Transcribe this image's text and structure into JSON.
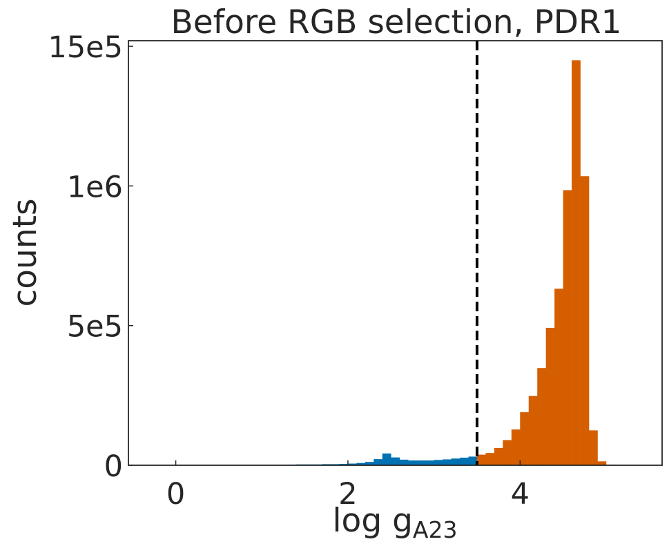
{
  "chart_data": {
    "type": "bar",
    "title": "Before RGB selection, PDR1",
    "xlabel": "log g",
    "xlabel_subscript": "A23",
    "ylabel": "counts",
    "xlim": [
      -0.55,
      5.65
    ],
    "ylim": [
      0,
      1520000
    ],
    "x_ticks": [
      {
        "value": 0,
        "label": "0"
      },
      {
        "value": 2,
        "label": "2"
      },
      {
        "value": 4,
        "label": "4"
      }
    ],
    "y_ticks": [
      {
        "value": 0,
        "label": "0"
      },
      {
        "value": 500000,
        "label": "5e5"
      },
      {
        "value": 1000000,
        "label": "1e6"
      },
      {
        "value": 1500000,
        "label": "15e5"
      }
    ],
    "bin_width": 0.1,
    "threshold": 3.5,
    "grid": false,
    "series": [
      {
        "color": "#0072b2",
        "bins": [
          [
            0.4,
            1000
          ],
          [
            0.5,
            1000
          ],
          [
            0.6,
            1000
          ],
          [
            0.7,
            1000
          ],
          [
            0.8,
            1000
          ],
          [
            0.9,
            1000
          ],
          [
            1.0,
            1000
          ],
          [
            1.1,
            1000
          ],
          [
            1.2,
            1000
          ],
          [
            1.3,
            2000
          ],
          [
            1.4,
            3000
          ],
          [
            1.5,
            3000
          ],
          [
            1.6,
            3000
          ],
          [
            1.7,
            4000
          ],
          [
            1.8,
            4000
          ],
          [
            1.9,
            5000
          ],
          [
            2.0,
            6000
          ],
          [
            2.1,
            8000
          ],
          [
            2.2,
            12000
          ],
          [
            2.3,
            22000
          ],
          [
            2.4,
            42000
          ],
          [
            2.5,
            28000
          ],
          [
            2.6,
            20000
          ],
          [
            2.7,
            17000
          ],
          [
            2.8,
            17000
          ],
          [
            2.9,
            17000
          ],
          [
            3.0,
            19000
          ],
          [
            3.1,
            21000
          ],
          [
            3.2,
            24000
          ],
          [
            3.3,
            27000
          ],
          [
            3.4,
            31000
          ]
        ]
      },
      {
        "color": "#d55e00",
        "bins": [
          [
            3.5,
            38000
          ],
          [
            3.6,
            44000
          ],
          [
            3.7,
            62000
          ],
          [
            3.8,
            90000
          ],
          [
            3.9,
            128000
          ],
          [
            4.0,
            190000
          ],
          [
            4.1,
            248000
          ],
          [
            4.2,
            348000
          ],
          [
            4.3,
            492000
          ],
          [
            4.4,
            632000
          ],
          [
            4.5,
            985000
          ],
          [
            4.6,
            1450000
          ],
          [
            4.7,
            1035000
          ],
          [
            4.8,
            125000
          ],
          [
            4.9,
            14000
          ],
          [
            5.0,
            2000
          ]
        ]
      }
    ]
  }
}
